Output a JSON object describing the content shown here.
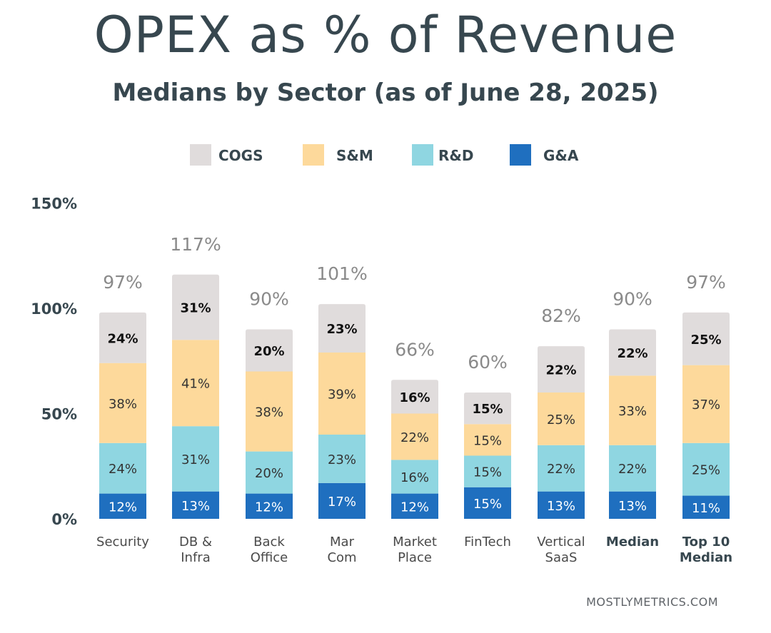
{
  "title": "OPEX as % of Revenue",
  "subtitle": "Medians by Sector (as of June 28, 2025)",
  "source": "MOSTLYMETRICS.COM",
  "chart_data": {
    "type": "bar",
    "stacked": true,
    "categories": [
      [
        "Security"
      ],
      [
        "DB &",
        "Infra"
      ],
      [
        "Back",
        "Office"
      ],
      [
        "Mar",
        "Com"
      ],
      [
        "Market",
        "Place"
      ],
      [
        "FinTech"
      ],
      [
        "Vertical",
        "SaaS"
      ],
      [
        "Median"
      ],
      [
        "Top 10",
        "Median"
      ]
    ],
    "bold_categories": [
      "Median",
      "Top 10 Median"
    ],
    "totals": [
      "97%",
      "117%",
      "90%",
      "101%",
      "66%",
      "60%",
      "82%",
      "90%",
      "97%"
    ],
    "series": [
      {
        "name": "G&A",
        "color": "#1f6fbf",
        "values": [
          12,
          13,
          12,
          17,
          12,
          15,
          13,
          13,
          11
        ]
      },
      {
        "name": "R&D",
        "color": "#8fd6e1",
        "values": [
          24,
          31,
          20,
          23,
          16,
          15,
          22,
          22,
          25
        ]
      },
      {
        "name": "S&M",
        "color": "#fdd99b",
        "values": [
          38,
          41,
          38,
          39,
          22,
          15,
          25,
          33,
          37
        ]
      },
      {
        "name": "COGS",
        "color": "#e0dcdc",
        "values": [
          24,
          31,
          20,
          23,
          16,
          15,
          22,
          22,
          25
        ]
      }
    ],
    "legend_order": [
      "COGS",
      "S&M",
      "R&D",
      "G&A"
    ],
    "legend_position": "top",
    "yticks": [
      "0%",
      "50%",
      "100%",
      "150%"
    ],
    "ylim": [
      0,
      150
    ],
    "grid": false
  }
}
